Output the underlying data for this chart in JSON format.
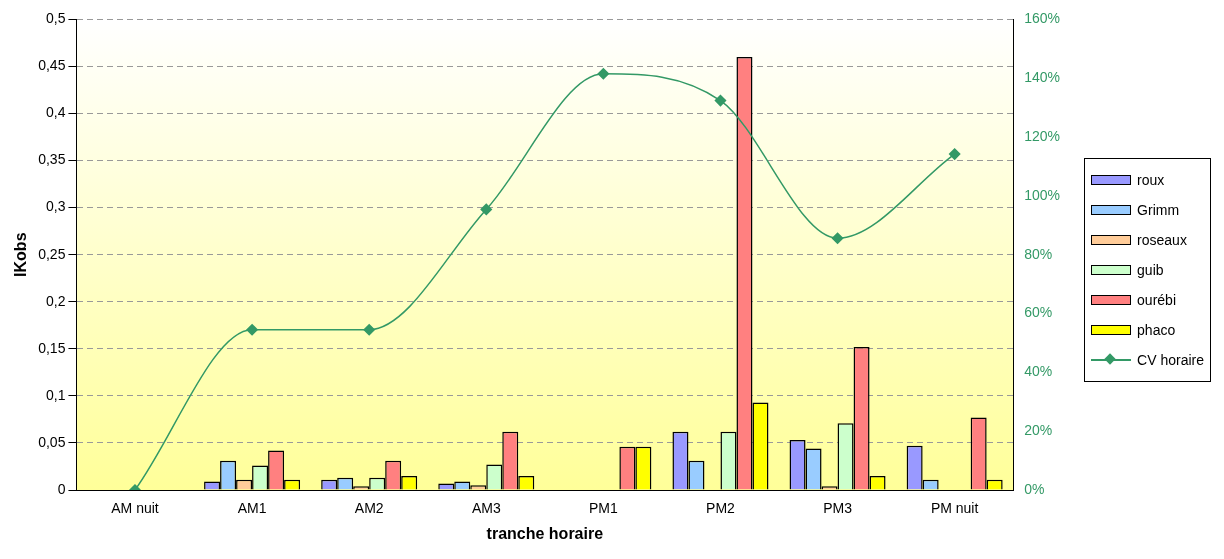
{
  "chart_data": {
    "type": "bar",
    "xlabel": "tranche horaire",
    "ylabel": "IKobs",
    "categories": [
      "AM nuit",
      "AM1",
      "AM2",
      "AM3",
      "PM1",
      "PM2",
      "PM3",
      "PM nuit"
    ],
    "series": [
      {
        "name": "roux",
        "color": "#9999ff",
        "values": [
          0,
          0.009,
          0.011,
          0.007,
          0,
          0.062,
          0.053,
          0.047
        ]
      },
      {
        "name": "Grimm",
        "color": "#99ccff",
        "values": [
          0,
          0.031,
          0.013,
          0.009,
          0,
          0.031,
          0.044,
          0.011
        ]
      },
      {
        "name": "roseaux",
        "color": "#ffcc99",
        "values": [
          0,
          0.011,
          0.004,
          0.005,
          0,
          0,
          0.004,
          0
        ]
      },
      {
        "name": "guib",
        "color": "#ccffcc",
        "values": [
          0,
          0.026,
          0.013,
          0.027,
          0,
          0.062,
          0.071,
          0
        ]
      },
      {
        "name": "ourébi",
        "color": "#ff8080",
        "values": [
          0,
          0.042,
          0.031,
          0.062,
          0.046,
          0.46,
          0.152,
          0.077
        ]
      },
      {
        "name": "phaco",
        "color": "#ffff00",
        "values": [
          0,
          0.011,
          0.015,
          0.015,
          0.046,
          0.093,
          0.015,
          0.011
        ]
      },
      {
        "name": "CV horaire",
        "type": "line",
        "axis": "y2",
        "color": "#339966",
        "marker": "diamond",
        "values": [
          0,
          54.5,
          54.5,
          95.4,
          141.5,
          132.4,
          85.6,
          114.2
        ]
      }
    ],
    "ylim": [
      0,
      0.5
    ],
    "yticks": [
      {
        "value": 0,
        "label": "0"
      },
      {
        "value": 0.05,
        "label": "0,05"
      },
      {
        "value": 0.1,
        "label": "0,1"
      },
      {
        "value": 0.15,
        "label": "0,15"
      },
      {
        "value": 0.2,
        "label": "0,2"
      },
      {
        "value": 0.25,
        "label": "0,25"
      },
      {
        "value": 0.3,
        "label": "0,3"
      },
      {
        "value": 0.35,
        "label": "0,35"
      },
      {
        "value": 0.4,
        "label": "0,4"
      },
      {
        "value": 0.45,
        "label": "0,45"
      },
      {
        "value": 0.5,
        "label": "0,5"
      }
    ],
    "y2lim": [
      0,
      160
    ],
    "y2ticks": [
      {
        "value": 0,
        "label": "0%"
      },
      {
        "value": 20,
        "label": "20%"
      },
      {
        "value": 40,
        "label": "40%"
      },
      {
        "value": 60,
        "label": "60%"
      },
      {
        "value": 80,
        "label": "80%"
      },
      {
        "value": 100,
        "label": "100%"
      },
      {
        "value": 120,
        "label": "120%"
      },
      {
        "value": 140,
        "label": "140%"
      },
      {
        "value": 160,
        "label": "160%"
      }
    ],
    "grid": "y",
    "legend": "right"
  }
}
